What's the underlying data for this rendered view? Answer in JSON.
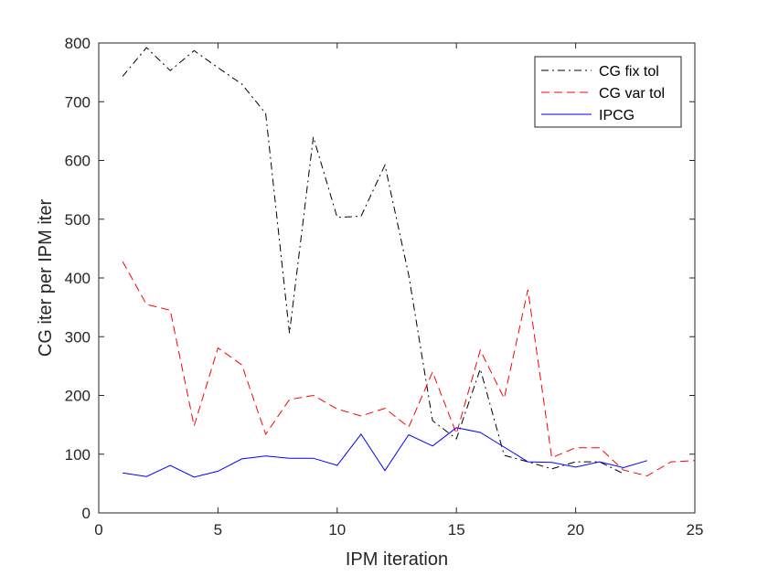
{
  "chart_data": {
    "type": "line",
    "title": "",
    "xlabel": "IPM iteration",
    "ylabel": "CG iter per IPM iter",
    "xlim": [
      0,
      25
    ],
    "ylim": [
      0,
      800
    ],
    "xticks": [
      0,
      5,
      10,
      15,
      20,
      25
    ],
    "yticks": [
      0,
      100,
      200,
      300,
      400,
      500,
      600,
      700,
      800
    ],
    "grid": false,
    "legend_position": "top-right",
    "series": [
      {
        "name": "CG fix tol",
        "color": "#000000",
        "dash": "dash-dot",
        "x": [
          1,
          2,
          3,
          4,
          5,
          6,
          7,
          8,
          9,
          10,
          11,
          12,
          13,
          14,
          15,
          16,
          17,
          18,
          19,
          20,
          21,
          22
        ],
        "y": [
          743,
          792,
          753,
          787,
          758,
          730,
          680,
          306,
          640,
          503,
          505,
          592,
          405,
          157,
          126,
          245,
          98,
          87,
          75,
          87,
          87,
          67
        ]
      },
      {
        "name": "CG var tol",
        "color": "#ff0000",
        "dash": "dashed",
        "x": [
          1,
          2,
          3,
          4,
          5,
          6,
          7,
          8,
          9,
          10,
          11,
          12,
          13,
          14,
          15,
          16,
          17,
          18,
          19,
          20,
          21,
          22,
          23,
          24,
          25
        ],
        "y": [
          428,
          355,
          345,
          148,
          281,
          252,
          134,
          193,
          200,
          177,
          165,
          178,
          146,
          240,
          135,
          277,
          195,
          380,
          94,
          111,
          111,
          73,
          63,
          87,
          89
        ]
      },
      {
        "name": "IPCG",
        "color": "#0000ff",
        "dash": "solid",
        "x": [
          1,
          2,
          3,
          4,
          5,
          6,
          7,
          8,
          9,
          10,
          11,
          12,
          13,
          14,
          15,
          16,
          17,
          18,
          19,
          20,
          21,
          22,
          23
        ],
        "y": [
          68,
          62,
          81,
          61,
          71,
          92,
          97,
          93,
          93,
          81,
          134,
          72,
          133,
          114,
          145,
          137,
          112,
          87,
          86,
          78,
          87,
          77,
          89
        ]
      }
    ]
  }
}
